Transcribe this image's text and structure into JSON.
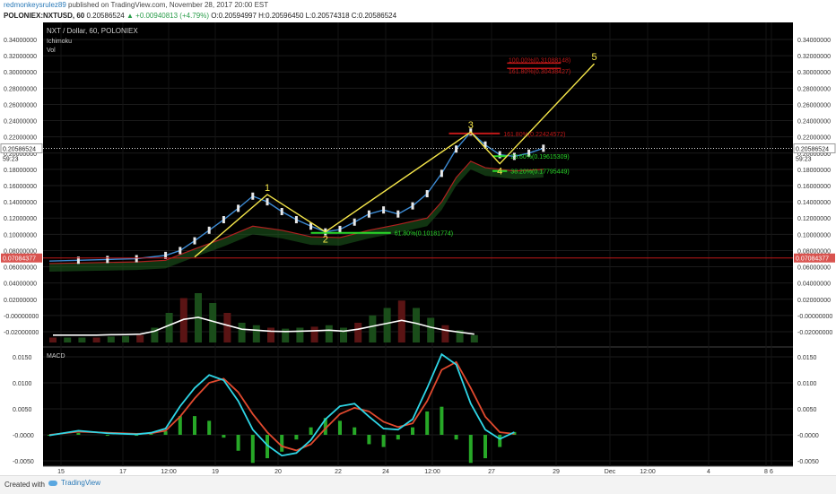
{
  "header": {
    "user": "redmonkeysrulez89",
    "published_text": " published on TradingView.com, November 28, 2017 20:00 EST",
    "symbol": "POLONIEX:NXTUSD, 60",
    "last": "0.20586524",
    "change": "+0.00940813 (+4.79%)",
    "ohlc": "O:0.20594997 H:0.20596450 L:0.20574318 C:0.20586524"
  },
  "legend": {
    "title": "NXT / Dollar, 60, POLONIEX",
    "ichimoku": "Ichimoku",
    "vol": "Vol",
    "macd": "MACD"
  },
  "footer": {
    "created": "Created with",
    "brand": "TradingView"
  },
  "chart_data": {
    "type": "line",
    "price_axis": {
      "ticks": [
        "0.34000000",
        "0.32000000",
        "0.30000000",
        "0.28000000",
        "0.26000000",
        "0.24000000",
        "0.22000000",
        "0.20000000",
        "0.18000000",
        "0.16000000",
        "0.14000000",
        "0.12000000",
        "0.10000000",
        "0.08000000",
        "0.06000000",
        "0.04000000",
        "0.02000000",
        "-0.00000000",
        "-0.02000000"
      ],
      "current_price": "0.20586524",
      "countdown": "59:23",
      "red_level": "0.07084377"
    },
    "macd_axis": {
      "ticks": [
        "0.0150",
        "0.0100",
        "0.0050",
        "-0.0000",
        "-0.0050"
      ]
    },
    "x_axis": {
      "ticks": [
        "15",
        "17",
        "12:00",
        "19",
        "20",
        "22",
        "24",
        "12:00",
        "27",
        "29",
        "Dec",
        "12:00",
        "4",
        "6",
        "8"
      ]
    },
    "price_series": [
      [
        0,
        0.067
      ],
      [
        2,
        0.068
      ],
      [
        4,
        0.069
      ],
      [
        6,
        0.07
      ],
      [
        8,
        0.074
      ],
      [
        9,
        0.08
      ],
      [
        10,
        0.092
      ],
      [
        11,
        0.105
      ],
      [
        12,
        0.118
      ],
      [
        13,
        0.132
      ],
      [
        14,
        0.147
      ],
      [
        15,
        0.14
      ],
      [
        16,
        0.128
      ],
      [
        17,
        0.118
      ],
      [
        18,
        0.11
      ],
      [
        19,
        0.103
      ],
      [
        20,
        0.106
      ],
      [
        21,
        0.115
      ],
      [
        22,
        0.125
      ],
      [
        23,
        0.13
      ],
      [
        24,
        0.125
      ],
      [
        25,
        0.135
      ],
      [
        26,
        0.15
      ],
      [
        27,
        0.175
      ],
      [
        28,
        0.205
      ],
      [
        29,
        0.226
      ],
      [
        30,
        0.21
      ],
      [
        31,
        0.198
      ],
      [
        32,
        0.196
      ],
      [
        33,
        0.2
      ],
      [
        34,
        0.206
      ]
    ],
    "cloud_series": [
      [
        0,
        0.064
      ],
      [
        6,
        0.066
      ],
      [
        8,
        0.068
      ],
      [
        10,
        0.082
      ],
      [
        12,
        0.095
      ],
      [
        14,
        0.11
      ],
      [
        16,
        0.105
      ],
      [
        18,
        0.097
      ],
      [
        20,
        0.096
      ],
      [
        22,
        0.105
      ],
      [
        24,
        0.112
      ],
      [
        26,
        0.12
      ],
      [
        27,
        0.14
      ],
      [
        28,
        0.17
      ],
      [
        29,
        0.19
      ],
      [
        30,
        0.182
      ],
      [
        32,
        0.178
      ],
      [
        34,
        0.18
      ]
    ],
    "elliott_points": [
      {
        "label": "1",
        "x": 15,
        "y": 0.149
      },
      {
        "label": "2",
        "x": 19,
        "y": 0.103
      },
      {
        "label": "3",
        "x": 29,
        "y": 0.226
      },
      {
        "label": "4",
        "x": 31,
        "y": 0.187
      },
      {
        "label": "5",
        "x": 37.5,
        "y": 0.31
      }
    ],
    "fib_levels": [
      {
        "label": "61.80%(0.10181774)",
        "value": 0.1018
      },
      {
        "label": "23.60%(0.19615309)",
        "value": 0.1962
      },
      {
        "label": "38.20%(0.17795449)",
        "value": 0.178
      },
      {
        "label": "161.80%(0.22424572)",
        "value": 0.2242
      }
    ],
    "target_levels": [
      {
        "label": "100.00%(0.31088148)",
        "value": 0.3109
      },
      {
        "label": "161.80%(0.30438427)",
        "value": 0.3044
      }
    ],
    "vol_series": [
      0.1,
      0.1,
      0.1,
      0.1,
      0.12,
      0.13,
      0.15,
      0.3,
      0.6,
      0.9,
      1.0,
      0.8,
      0.6,
      0.4,
      0.35,
      0.3,
      0.28,
      0.3,
      0.32,
      0.35,
      0.3,
      0.4,
      0.55,
      0.7,
      0.85,
      0.7,
      0.5,
      0.35,
      0.25,
      0.15
    ],
    "macd_series": [
      [
        0,
        -0.0001
      ],
      [
        2,
        0.0008
      ],
      [
        4,
        0.0003
      ],
      [
        6,
        0.0001
      ],
      [
        7,
        0.0004
      ],
      [
        8,
        0.0012
      ],
      [
        9,
        0.0055
      ],
      [
        10,
        0.009
      ],
      [
        11,
        0.0115
      ],
      [
        12,
        0.0105
      ],
      [
        13,
        0.0065
      ],
      [
        14,
        0.001
      ],
      [
        15,
        -0.002
      ],
      [
        16,
        -0.004
      ],
      [
        17,
        -0.0035
      ],
      [
        18,
        -0.001
      ],
      [
        19,
        0.003
      ],
      [
        20,
        0.0055
      ],
      [
        21,
        0.006
      ],
      [
        22,
        0.0035
      ],
      [
        23,
        0.0012
      ],
      [
        24,
        0.001
      ],
      [
        25,
        0.003
      ],
      [
        26,
        0.009
      ],
      [
        27,
        0.0155
      ],
      [
        28,
        0.0135
      ],
      [
        29,
        0.006
      ],
      [
        30,
        0.001
      ],
      [
        31,
        -0.0008
      ],
      [
        32,
        0.0005
      ]
    ],
    "signal_series": [
      [
        0,
        0.0
      ],
      [
        2,
        0.0006
      ],
      [
        4,
        0.0004
      ],
      [
        6,
        0.0002
      ],
      [
        7,
        0.0003
      ],
      [
        8,
        0.0008
      ],
      [
        9,
        0.0035
      ],
      [
        10,
        0.007
      ],
      [
        11,
        0.01
      ],
      [
        12,
        0.0108
      ],
      [
        13,
        0.0082
      ],
      [
        14,
        0.004
      ],
      [
        15,
        0.0005
      ],
      [
        16,
        -0.0022
      ],
      [
        17,
        -0.003
      ],
      [
        18,
        -0.0018
      ],
      [
        19,
        0.0012
      ],
      [
        20,
        0.004
      ],
      [
        21,
        0.0052
      ],
      [
        22,
        0.0045
      ],
      [
        23,
        0.0025
      ],
      [
        24,
        0.0015
      ],
      [
        25,
        0.0022
      ],
      [
        26,
        0.0065
      ],
      [
        27,
        0.0125
      ],
      [
        28,
        0.014
      ],
      [
        29,
        0.009
      ],
      [
        30,
        0.0035
      ],
      [
        31,
        0.0005
      ],
      [
        32,
        0.0002
      ]
    ],
    "colors": {
      "macd": "#2fd6e6",
      "signal": "#e0492e",
      "price_up": "#ffffff",
      "cloud": "#2e9e3a",
      "wave": "#f5e64a",
      "fib": "#2adb2a",
      "target": "#c01818"
    }
  }
}
